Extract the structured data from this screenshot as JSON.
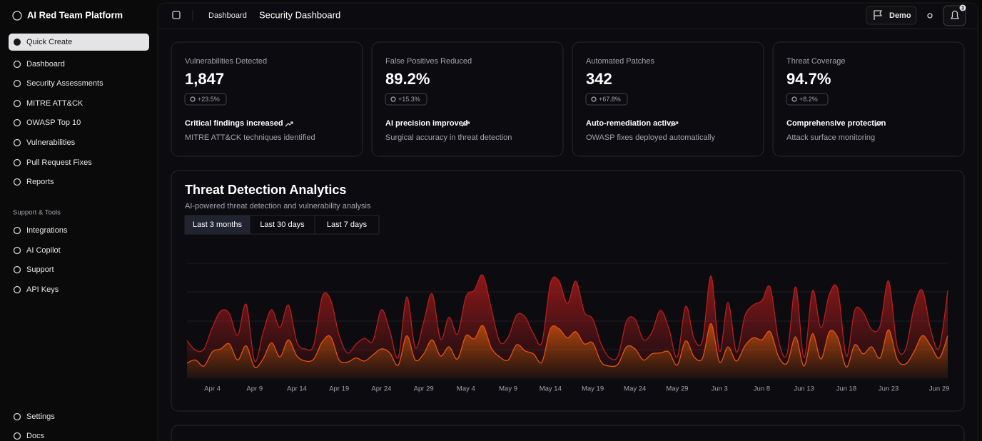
{
  "sidebar": {
    "brand": "AI Red Team Platform",
    "quick_create": "Quick Create",
    "nav": [
      "Dashboard",
      "Security Assessments",
      "MITRE ATT&CK",
      "OWASP Top 10",
      "Vulnerabilities",
      "Pull Request Fixes",
      "Reports"
    ],
    "section_title": "Support & Tools",
    "support_nav": [
      "Integrations",
      "AI Copilot",
      "Support",
      "API Keys"
    ],
    "footer_nav": [
      "Settings",
      "Docs"
    ]
  },
  "header": {
    "breadcrumb": "Dashboard",
    "title": "Security Dashboard",
    "demo_button": "Demo",
    "notification_count": 3
  },
  "cards": [
    {
      "label": "Vulnerabilities Detected",
      "value": "1,847",
      "change": "+23.5%",
      "headline": "Critical findings increased",
      "description": "MITRE ATT&CK techniques identified"
    },
    {
      "label": "False Positives Reduced",
      "value": "89.2%",
      "change": "+15.3%",
      "headline": "AI precision improved",
      "description": "Surgical accuracy in threat detection"
    },
    {
      "label": "Automated Patches",
      "value": "342",
      "change": "+67.8%",
      "headline": "Auto-remediation active",
      "description": "OWASP fixes deployed automatically"
    },
    {
      "label": "Threat Coverage",
      "value": "94.7%",
      "change": "+8.2%",
      "headline": "Comprehensive protection",
      "description": "Attack surface monitoring"
    }
  ],
  "chart_controls": {
    "tabs": [
      "Last 3 months",
      "Last 30 days",
      "Last 7 days"
    ],
    "active": 0
  },
  "chart_data": {
    "type": "stacked-area",
    "title": "Threat Detection Analytics",
    "subtitle": "AI-powered threat detection and vulnerability analysis",
    "categories": [
      null,
      null,
      null,
      "Apr 4",
      null,
      null,
      null,
      null,
      "Apr 9",
      null,
      null,
      null,
      null,
      "Apr 14",
      null,
      null,
      null,
      null,
      "Apr 19",
      null,
      null,
      null,
      null,
      "Apr 24",
      null,
      null,
      null,
      null,
      "Apr 29",
      null,
      null,
      null,
      null,
      "May 4",
      null,
      null,
      null,
      null,
      "May 9",
      null,
      null,
      null,
      null,
      "May 14",
      null,
      null,
      null,
      null,
      "May 19",
      null,
      null,
      null,
      null,
      "May 24",
      null,
      null,
      null,
      null,
      "May 29",
      null,
      null,
      null,
      null,
      "Jun 3",
      null,
      null,
      null,
      null,
      "Jun 8",
      null,
      null,
      null,
      null,
      "Jun 13",
      null,
      null,
      null,
      null,
      "Jun 18",
      null,
      null,
      null,
      null,
      "Jun 23",
      null,
      null,
      null,
      null,
      null,
      "Jun 29",
      null
    ],
    "ylim": [
      0,
      1100
    ],
    "series": [
      {
        "color": "#ea580c",
        "values": [
          150,
          180,
          120,
          260,
          290,
          340,
          180,
          320,
          110,
          190,
          350,
          210,
          380,
          220,
          170,
          190,
          360,
          410,
          180,
          160,
          200,
          170,
          230,
          290,
          250,
          130,
          420,
          180,
          240,
          380,
          220,
          310,
          190,
          420,
          390,
          520,
          300,
          210,
          180,
          330,
          270,
          240,
          160,
          490,
          490,
          400,
          460,
          340,
          350,
          160,
          120,
          140,
          310,
          290,
          180,
          240,
          250,
          260,
          130,
          370,
          210,
          200,
          540,
          160,
          310,
          170,
          320,
          400,
          380,
          460,
          210,
          150,
          410,
          120,
          440,
          190,
          460,
          400,
          110,
          330,
          240,
          310,
          200,
          480,
          190,
          140,
          260,
          420,
          320,
          200,
          420
        ]
      },
      {
        "color": "#b91c1c",
        "values": [
          222,
          97,
          167,
          242,
          373,
          301,
          245,
          409,
          59,
          261,
          327,
          292,
          342,
          137,
          120,
          138,
          446,
          364,
          243,
          89,
          137,
          224,
          138,
          387,
          215,
          75,
          383,
          122,
          315,
          454,
          165,
          293,
          247,
          385,
          481,
          498,
          388,
          149,
          227,
          293,
          335,
          197,
          197,
          448,
          473,
          338,
          499,
          315,
          235,
          177,
          82,
          81,
          252,
          294,
          201,
          213,
          420,
          233,
          78,
          340,
          178,
          178,
          470,
          103,
          439,
          88,
          294,
          323,
          385,
          438,
          155,
          92,
          492,
          81,
          426,
          307,
          371,
          475,
          107,
          341,
          408,
          169,
          317,
          480,
          132,
          141,
          434,
          448,
          149,
          103,
          446
        ]
      }
    ]
  }
}
